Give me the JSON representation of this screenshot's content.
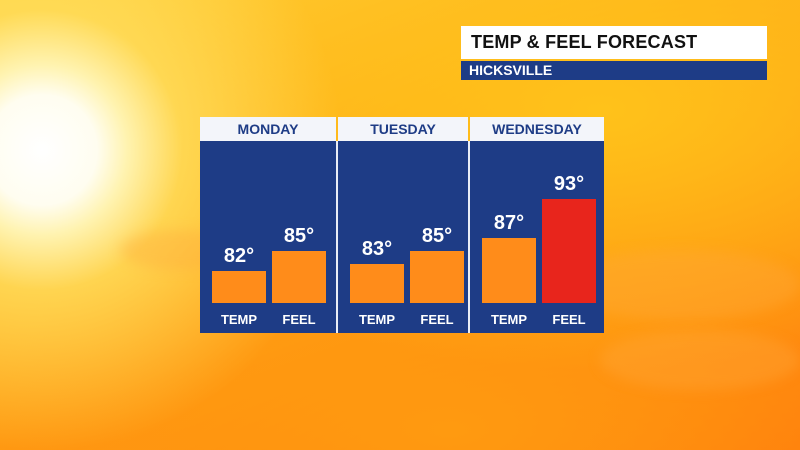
{
  "header": {
    "title": "TEMP & FEEL FORECAST",
    "location": "HICKSVILLE"
  },
  "colors": {
    "panel_blue": "#1e3c86",
    "bar_orange": "#ff8c1a",
    "bar_red": "#e8251c"
  },
  "chart_data": {
    "type": "bar",
    "title": "TEMP & FEEL FORECAST",
    "subtitle": "HICKSVILLE",
    "categories": [
      "MONDAY",
      "TUESDAY",
      "WEDNESDAY"
    ],
    "series": [
      {
        "name": "TEMP",
        "values": [
          82,
          83,
          87
        ],
        "labels": [
          "82°",
          "83°",
          "87°"
        ]
      },
      {
        "name": "FEEL",
        "values": [
          85,
          85,
          93
        ],
        "labels": [
          "85°",
          "85°",
          "93°"
        ]
      }
    ],
    "highlight": {
      "series": "FEEL",
      "category": "WEDNESDAY",
      "color": "#e8251c"
    },
    "grid": false,
    "legend": "none"
  }
}
